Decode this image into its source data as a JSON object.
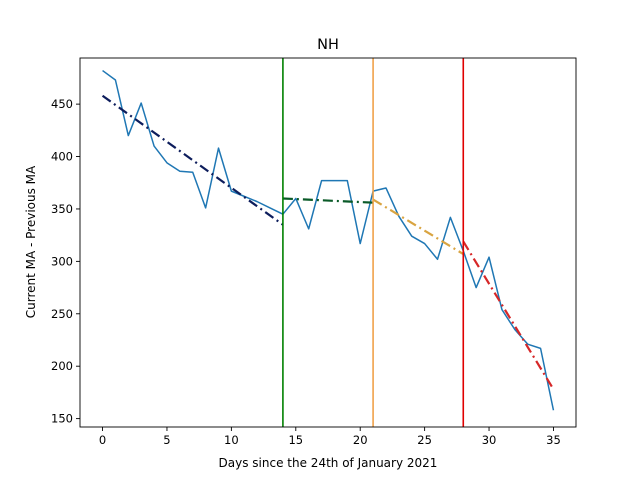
{
  "chart_data": {
    "type": "line",
    "title": "NH",
    "xlabel": "Days since the 24th of January 2021",
    "ylabel": "Current MA - Previous MA",
    "xlim": [
      -1.75,
      36.75
    ],
    "ylim": [
      142,
      494
    ],
    "x_ticks": [
      0,
      5,
      10,
      15,
      20,
      25,
      30,
      35
    ],
    "y_ticks": [
      150,
      200,
      250,
      300,
      350,
      400,
      450
    ],
    "grid": false,
    "legend": "none",
    "series": [
      {
        "color": "#1f77b4",
        "x": [
          0,
          1,
          2,
          3,
          4,
          5,
          6,
          7,
          8,
          9,
          10,
          11,
          12,
          13,
          14,
          15,
          16,
          17,
          18,
          19,
          20,
          21,
          22,
          23,
          24,
          25,
          26,
          27,
          28,
          29,
          30,
          31,
          32,
          33,
          34,
          35
        ],
        "y": [
          482,
          473,
          420,
          451,
          410,
          394,
          386,
          385,
          351,
          408,
          367,
          362,
          357,
          351,
          345,
          360,
          331,
          377,
          377,
          377,
          317,
          367,
          370,
          343,
          324,
          317,
          302,
          342,
          310,
          275,
          304,
          254,
          235,
          221,
          217,
          158
        ]
      }
    ],
    "trend_lines": [
      {
        "color": "#0d1d5c",
        "dash": "dashdot",
        "x": [
          0,
          14
        ],
        "y": [
          458,
          335
        ]
      },
      {
        "color": "#0a5a28",
        "dash": "dashdot",
        "x": [
          14,
          21
        ],
        "y": [
          360,
          356
        ]
      },
      {
        "color": "#d9a441",
        "dash": "dashdot",
        "x": [
          21,
          28
        ],
        "y": [
          359,
          307
        ]
      },
      {
        "color": "#d62728",
        "dash": "dashdot",
        "x": [
          28,
          35
        ],
        "y": [
          319,
          178
        ]
      }
    ],
    "vlines": [
      {
        "x": 14,
        "color": "#008000"
      },
      {
        "x": 21,
        "color": "#f0a24a"
      },
      {
        "x": 28,
        "color": "#e00000"
      }
    ]
  }
}
